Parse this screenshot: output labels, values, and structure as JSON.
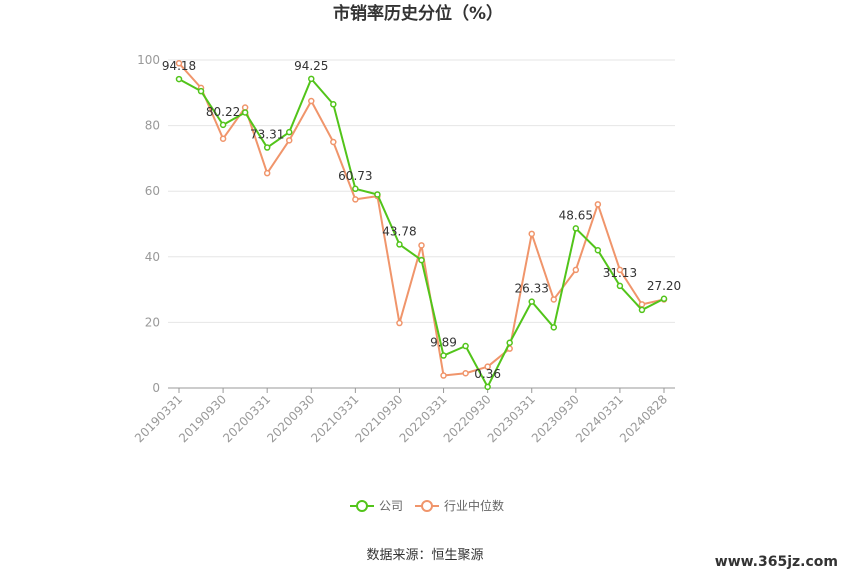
{
  "chart_data": {
    "type": "line",
    "title": "市销率历史分位（%）",
    "ylim": [
      0,
      100
    ],
    "yticks": [
      0,
      20,
      40,
      60,
      80,
      100
    ],
    "xticks": [
      "20190331",
      "20190930",
      "20200331",
      "20200930",
      "20210331",
      "20210930",
      "20220331",
      "20220930",
      "20230331",
      "20230930",
      "20240331",
      "20240828"
    ],
    "x": [
      "20190331",
      "20190630",
      "20190930",
      "20191231",
      "20200331",
      "20200630",
      "20200930",
      "20201231",
      "20210331",
      "20210630",
      "20210930",
      "20211231",
      "20220331",
      "20220630",
      "20220930",
      "20221231",
      "20230331",
      "20230630",
      "20230930",
      "20231231",
      "20240331",
      "20240630",
      "20240828"
    ],
    "series": [
      {
        "name": "公司",
        "color": "#52c41a",
        "values": [
          94.18,
          90.5,
          80.22,
          84.0,
          73.31,
          78.0,
          94.25,
          86.5,
          60.73,
          59.0,
          43.78,
          39.0,
          9.89,
          12.8,
          0.36,
          13.8,
          26.33,
          18.5,
          48.65,
          42.0,
          31.13,
          23.8,
          27.2
        ]
      },
      {
        "name": "行业中位数",
        "color": "#f0956b",
        "values": [
          99.0,
          91.5,
          76.0,
          85.5,
          65.5,
          75.5,
          87.5,
          75.0,
          57.5,
          58.5,
          19.8,
          43.5,
          3.8,
          4.5,
          6.5,
          12.0,
          47.0,
          27.0,
          36.0,
          56.0,
          36.0,
          25.5,
          27.0
        ]
      }
    ],
    "data_labels": [
      {
        "index": 0,
        "text": "94.18"
      },
      {
        "index": 2,
        "text": "80.22"
      },
      {
        "index": 4,
        "text": "73.31"
      },
      {
        "index": 6,
        "text": "94.25"
      },
      {
        "index": 8,
        "text": "60.73"
      },
      {
        "index": 10,
        "text": "43.78"
      },
      {
        "index": 12,
        "text": "9.89"
      },
      {
        "index": 14,
        "text": "0.36"
      },
      {
        "index": 16,
        "text": "26.33"
      },
      {
        "index": 18,
        "text": "48.65"
      },
      {
        "index": 20,
        "text": "31.13"
      },
      {
        "index": 22,
        "text": "27.20"
      }
    ],
    "legend_placement": "bottom-center",
    "grid": true
  },
  "source": "数据来源：恒生聚源",
  "watermark": "www.365jz.com"
}
